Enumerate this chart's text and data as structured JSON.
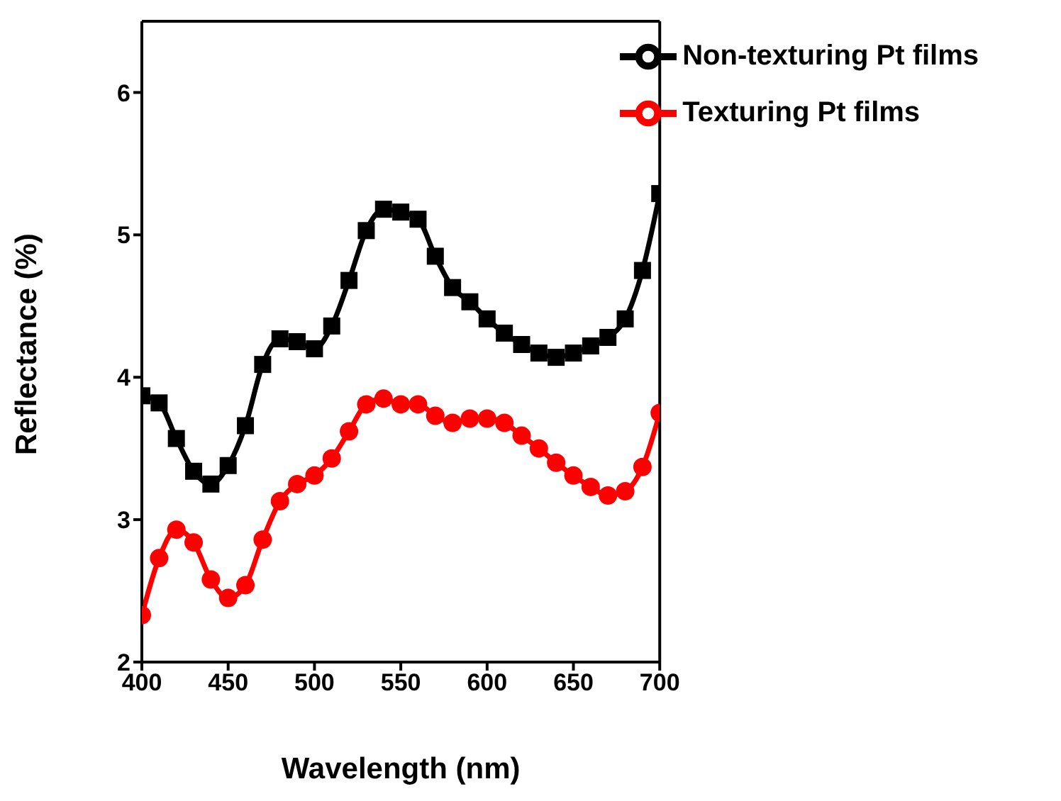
{
  "chart_data": {
    "type": "line",
    "xlabel": "Wavelength (nm)",
    "ylabel": "Reflectance (%)",
    "x": [
      400,
      410,
      420,
      430,
      440,
      450,
      460,
      470,
      480,
      490,
      500,
      510,
      520,
      530,
      540,
      550,
      560,
      570,
      580,
      590,
      600,
      610,
      620,
      630,
      640,
      650,
      660,
      670,
      680,
      690,
      700
    ],
    "series": [
      {
        "name": "Non-texturing Pt films",
        "color": "#000000",
        "marker": "square",
        "values": [
          3.87,
          3.82,
          3.57,
          3.34,
          3.25,
          3.38,
          3.66,
          4.09,
          4.27,
          4.25,
          4.2,
          4.36,
          4.68,
          5.03,
          5.18,
          5.16,
          5.11,
          4.85,
          4.63,
          4.53,
          4.41,
          4.31,
          4.23,
          4.17,
          4.14,
          4.17,
          4.22,
          4.28,
          4.41,
          4.75,
          5.29
        ]
      },
      {
        "name": "Texturing Pt films",
        "color": "#ff0000",
        "marker": "circle",
        "values": [
          2.33,
          2.73,
          2.93,
          2.84,
          2.58,
          2.45,
          2.54,
          2.86,
          3.13,
          3.25,
          3.31,
          3.43,
          3.62,
          3.81,
          3.85,
          3.81,
          3.81,
          3.73,
          3.68,
          3.71,
          3.71,
          3.68,
          3.59,
          3.5,
          3.4,
          3.31,
          3.23,
          3.17,
          3.2,
          3.37,
          3.75
        ]
      }
    ],
    "xlim": [
      400,
      700
    ],
    "xticks": [
      400,
      450,
      500,
      550,
      600,
      650,
      700
    ],
    "ylim": [
      2,
      6.5
    ],
    "yticks": [
      2,
      3,
      4,
      5,
      6
    ],
    "grid": false,
    "legend": "top right",
    "line_style": "solid"
  }
}
